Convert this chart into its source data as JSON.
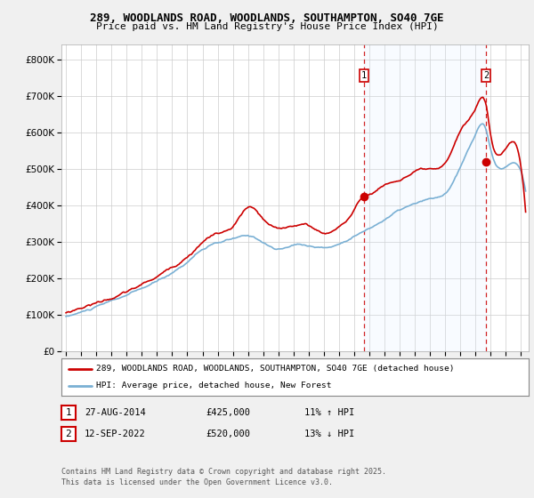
{
  "title1": "289, WOODLANDS ROAD, WOODLANDS, SOUTHAMPTON, SO40 7GE",
  "title2": "Price paid vs. HM Land Registry's House Price Index (HPI)",
  "ylim": [
    0,
    840000
  ],
  "yticks": [
    0,
    100000,
    200000,
    300000,
    400000,
    500000,
    600000,
    700000,
    800000
  ],
  "line1_color": "#cc0000",
  "line2_color": "#7ab0d4",
  "vline_color": "#cc0000",
  "shade_color": "#ddeeff",
  "legend1": "289, WOODLANDS ROAD, WOODLANDS, SOUTHAMPTON, SO40 7GE (detached house)",
  "legend2": "HPI: Average price, detached house, New Forest",
  "sale1_date": "27-AUG-2014",
  "sale1_price": "£425,000",
  "sale1_hpi": "11% ↑ HPI",
  "sale2_date": "12-SEP-2022",
  "sale2_price": "£520,000",
  "sale2_hpi": "13% ↓ HPI",
  "footnote1": "Contains HM Land Registry data © Crown copyright and database right 2025.",
  "footnote2": "This data is licensed under the Open Government Licence v3.0.",
  "sale1_x": 2014.65,
  "sale2_x": 2022.7,
  "sale1_y": 425000,
  "sale2_y": 520000,
  "background_color": "#f0f0f0",
  "plot_bg": "#ffffff",
  "xlim_left": 1994.7,
  "xlim_right": 2025.5
}
